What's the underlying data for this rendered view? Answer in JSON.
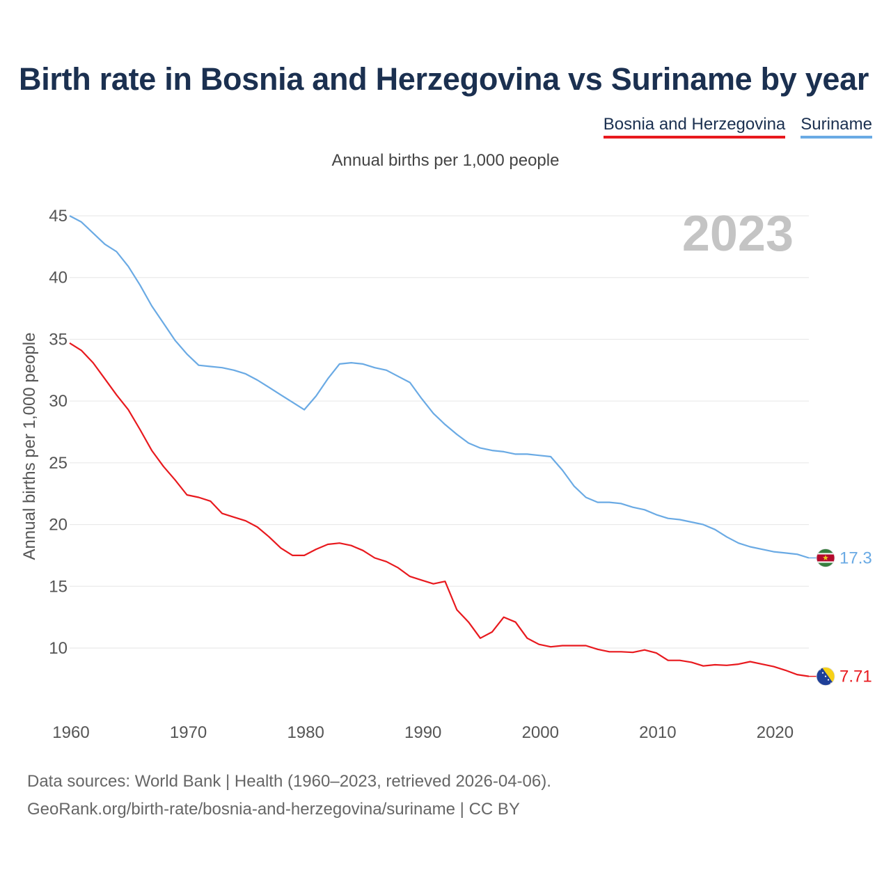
{
  "title": "Birth rate in Bosnia and Herzegovina vs Suriname by year",
  "legend": {
    "bosnia": "Bosnia and Herzegovina",
    "suriname": "Suriname"
  },
  "subtitle": "Annual births per 1,000 people",
  "footer": {
    "line1": "Data sources: World Bank | Health (1960–2023, retrieved 2026-04-06).",
    "line2": "GeoRank.org/birth-rate/bosnia-and-herzegovina/suriname | CC BY"
  },
  "chart_data": {
    "type": "line",
    "title": "Birth rate in Bosnia and Herzegovina vs Suriname by year",
    "ylabel": "Annual births per 1,000 people",
    "xlabel": "",
    "year_label": "2023",
    "xlim": [
      1960,
      2023
    ],
    "ylim": [
      6,
      46
    ],
    "yticks": [
      10,
      15,
      20,
      25,
      30,
      35,
      40,
      45
    ],
    "xticks": [
      1960,
      1970,
      1980,
      1990,
      2000,
      2010,
      2020
    ],
    "grid": true,
    "legend_position": "top-right",
    "x": [
      1960,
      1961,
      1962,
      1963,
      1964,
      1965,
      1966,
      1967,
      1968,
      1969,
      1970,
      1971,
      1972,
      1973,
      1974,
      1975,
      1976,
      1977,
      1978,
      1979,
      1980,
      1981,
      1982,
      1983,
      1984,
      1985,
      1986,
      1987,
      1988,
      1989,
      1990,
      1991,
      1992,
      1993,
      1994,
      1995,
      1996,
      1997,
      1998,
      1999,
      2000,
      2001,
      2002,
      2003,
      2004,
      2005,
      2006,
      2007,
      2008,
      2009,
      2010,
      2011,
      2012,
      2013,
      2014,
      2015,
      2016,
      2017,
      2018,
      2019,
      2020,
      2021,
      2022,
      2023
    ],
    "series": [
      {
        "name": "Bosnia and Herzegovina",
        "color": "#e8191e",
        "end_label": "7.71",
        "flag_icon": "bosnia-flag-icon",
        "values": [
          34.7,
          34.1,
          33.1,
          31.8,
          30.5,
          29.3,
          27.7,
          26.0,
          24.7,
          23.6,
          22.4,
          22.2,
          21.9,
          20.9,
          20.6,
          20.3,
          19.8,
          19.0,
          18.1,
          17.5,
          17.5,
          18.0,
          18.4,
          18.5,
          18.3,
          17.9,
          17.3,
          17.0,
          16.5,
          15.8,
          15.5,
          15.2,
          15.4,
          13.1,
          12.1,
          10.8,
          11.3,
          12.5,
          12.1,
          10.8,
          10.3,
          10.1,
          10.2,
          10.2,
          10.2,
          9.9,
          9.7,
          9.7,
          9.65,
          9.85,
          9.6,
          9.0,
          9.0,
          8.85,
          8.55,
          8.65,
          8.6,
          8.7,
          8.9,
          8.7,
          8.5,
          8.2,
          7.85,
          7.71
        ]
      },
      {
        "name": "Suriname",
        "color": "#6aaae4",
        "end_label": "17.3",
        "flag_icon": "suriname-flag-icon",
        "values": [
          45.0,
          44.5,
          43.6,
          42.7,
          42.1,
          40.9,
          39.4,
          37.7,
          36.3,
          34.9,
          33.8,
          32.9,
          32.8,
          32.7,
          32.5,
          32.2,
          31.7,
          31.1,
          30.5,
          29.9,
          29.3,
          30.4,
          31.8,
          33.0,
          33.1,
          33.0,
          32.7,
          32.5,
          32.0,
          31.5,
          30.2,
          29.0,
          28.1,
          27.3,
          26.6,
          26.2,
          26.0,
          25.9,
          25.7,
          25.7,
          25.6,
          25.5,
          24.4,
          23.1,
          22.2,
          21.8,
          21.8,
          21.7,
          21.4,
          21.2,
          20.8,
          20.5,
          20.4,
          20.2,
          20.0,
          19.6,
          19.0,
          18.5,
          18.2,
          18.0,
          17.8,
          17.7,
          17.6,
          17.3
        ]
      }
    ]
  }
}
